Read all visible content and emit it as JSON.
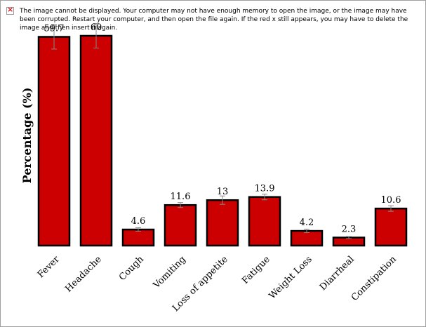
{
  "placeholder": {
    "message": "The image cannot be displayed. Your computer may not have enough memory to open the image, or the image may have been corrupted. Restart your computer, and then open the file again. If the red x still appears, you may have to delete the image and then insert it again.",
    "icon": "broken-image-icon"
  },
  "chart_data": {
    "type": "bar",
    "title": "",
    "xlabel": "",
    "ylabel": "Percentage (%)",
    "ylim": [
      0,
      60
    ],
    "grid": false,
    "bar_color": "#cc0000",
    "categories": [
      "Fever",
      "Headache",
      "Cough",
      "Vomiting",
      "Loss of appetite",
      "Fatigue",
      "Weight Loss",
      "Diarrheal",
      "Constipation"
    ],
    "values": [
      59.7,
      60,
      4.6,
      11.6,
      13,
      13.9,
      4.2,
      2.3,
      10.6
    ],
    "value_labels": [
      "59.7",
      "60",
      "4.6",
      "11.6",
      "13",
      "13.9",
      "4.2",
      "2.3",
      "10.6"
    ],
    "error_bars": [
      3.5,
      3.5,
      0.5,
      0.7,
      1.2,
      0.8,
      0.5,
      0.3,
      0.8
    ]
  }
}
